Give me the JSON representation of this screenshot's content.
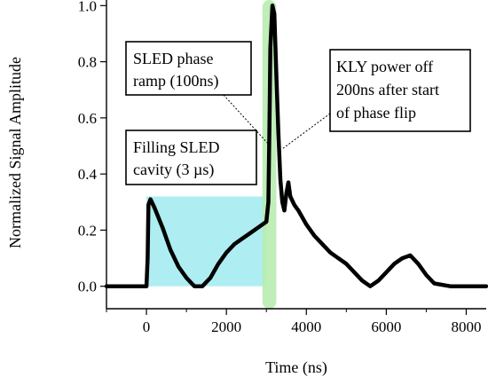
{
  "chart_data": {
    "type": "line",
    "title": "",
    "xlabel": "Time (ns)",
    "ylabel": "Normalized Signal Amplitude",
    "xlim": [
      -1000,
      8500
    ],
    "ylim": [
      -0.08,
      1.02
    ],
    "xticks": [
      0,
      2000,
      4000,
      6000,
      8000
    ],
    "xtick_labels": [
      "0",
      "2000",
      "4000",
      "6000",
      "8000"
    ],
    "yticks": [
      0.0,
      0.2,
      0.4,
      0.6,
      0.8,
      1.0
    ],
    "ytick_labels": [
      "0.0",
      "0.2",
      "0.4",
      "0.6",
      "0.8",
      "1.0"
    ],
    "grid": false,
    "series": [
      {
        "color": "#000000",
        "x": [
          -1000,
          -500,
          0,
          30,
          50,
          100,
          200,
          400,
          600,
          800,
          1000,
          1200,
          1400,
          1600,
          1800,
          2000,
          2200,
          2400,
          2600,
          2800,
          3000,
          3050,
          3080,
          3100,
          3150,
          3200,
          3250,
          3300,
          3350,
          3400,
          3450,
          3500,
          3550,
          3600,
          3700,
          3800,
          4000,
          4200,
          4400,
          4600,
          4800,
          5000,
          5200,
          5400,
          5600,
          5800,
          6000,
          6200,
          6400,
          6600,
          6800,
          7000,
          7200,
          7600,
          8000,
          8500
        ],
        "y": [
          0.0,
          0.0,
          0.0,
          0.1,
          0.29,
          0.31,
          0.28,
          0.21,
          0.13,
          0.07,
          0.03,
          0.0,
          0.0,
          0.03,
          0.08,
          0.12,
          0.15,
          0.17,
          0.19,
          0.21,
          0.23,
          0.3,
          0.6,
          0.85,
          1.0,
          0.97,
          0.75,
          0.55,
          0.38,
          0.3,
          0.27,
          0.33,
          0.37,
          0.32,
          0.29,
          0.27,
          0.22,
          0.18,
          0.15,
          0.12,
          0.1,
          0.08,
          0.05,
          0.02,
          0.0,
          0.02,
          0.05,
          0.08,
          0.1,
          0.11,
          0.08,
          0.04,
          0.01,
          0.0,
          0.0,
          0.0
        ]
      }
    ],
    "shaded_regions": [
      {
        "x": [
          0,
          3000
        ],
        "y": [
          0.0,
          0.32
        ],
        "color": "#aeeef2"
      },
      {
        "x": [
          2900,
          3250
        ],
        "y": [
          -0.08,
          1.02
        ],
        "color": "#b8ecb0"
      }
    ],
    "annotations": [
      {
        "lines": [
          "SLED phase",
          "ramp (100ns)"
        ]
      },
      {
        "lines": [
          "KLY power off",
          "200ns after start",
          "of phase flip"
        ]
      },
      {
        "lines": [
          "Filling SLED",
          "cavity (3 µs)"
        ]
      }
    ]
  }
}
